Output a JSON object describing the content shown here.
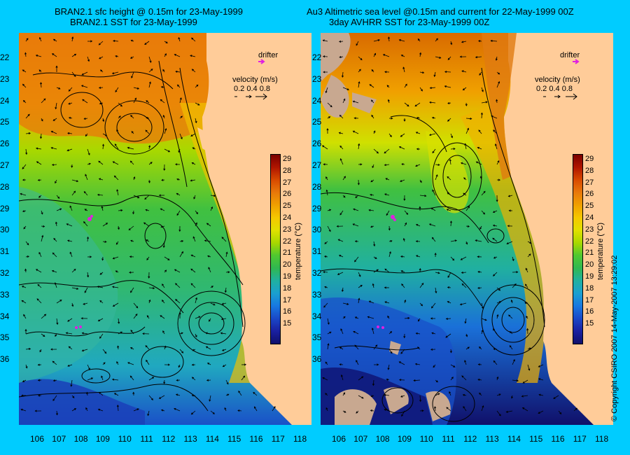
{
  "titles": {
    "left_line1": "BRAN2.1 sfc height @ 0.15m for 23-May-1999",
    "left_line2": "BRAN2.1 SST for 23-May-1999",
    "right_line1": "Au3 Altimetric sea level  @0.15m and current for 22-May-1999 00Z",
    "right_line2": "3day AVHRR SST for 23-May-1999 00Z"
  },
  "latitude_labels": [
    "22",
    "23",
    "24",
    "25",
    "26",
    "27",
    "28",
    "29",
    "30",
    "31",
    "32",
    "33",
    "34",
    "35",
    "36"
  ],
  "longitude_labels": [
    "106",
    "107",
    "108",
    "109",
    "110",
    "111",
    "112",
    "113",
    "114",
    "115",
    "116",
    "117",
    "118"
  ],
  "legend": {
    "drifter": "drifter",
    "velocity_title": "velocity (m/s)",
    "velocity_values": "0.2  0.4  0.8"
  },
  "colorbar": {
    "title": "temperature (°C)",
    "ticks": [
      "29",
      "28",
      "27",
      "26",
      "25",
      "24",
      "23",
      "22",
      "21",
      "20",
      "19",
      "18",
      "17",
      "16",
      "15"
    ],
    "colors": [
      "#7a0000",
      "#b01500",
      "#d84a00",
      "#e8780a",
      "#f0a000",
      "#f5c800",
      "#e0e000",
      "#a8d800",
      "#50c830",
      "#30b850",
      "#20b0a0",
      "#1aa0d0",
      "#1878e0",
      "#1a48c8",
      "#1a20a0",
      "#10106a"
    ]
  },
  "copyright": "© Copyright CSIRO 2007  14-May-2007 13:29:02",
  "colors": {
    "background": "#00ccff",
    "land": "#ffcc99",
    "cloud": "#c8a890",
    "drifter": "#e020e0"
  }
}
